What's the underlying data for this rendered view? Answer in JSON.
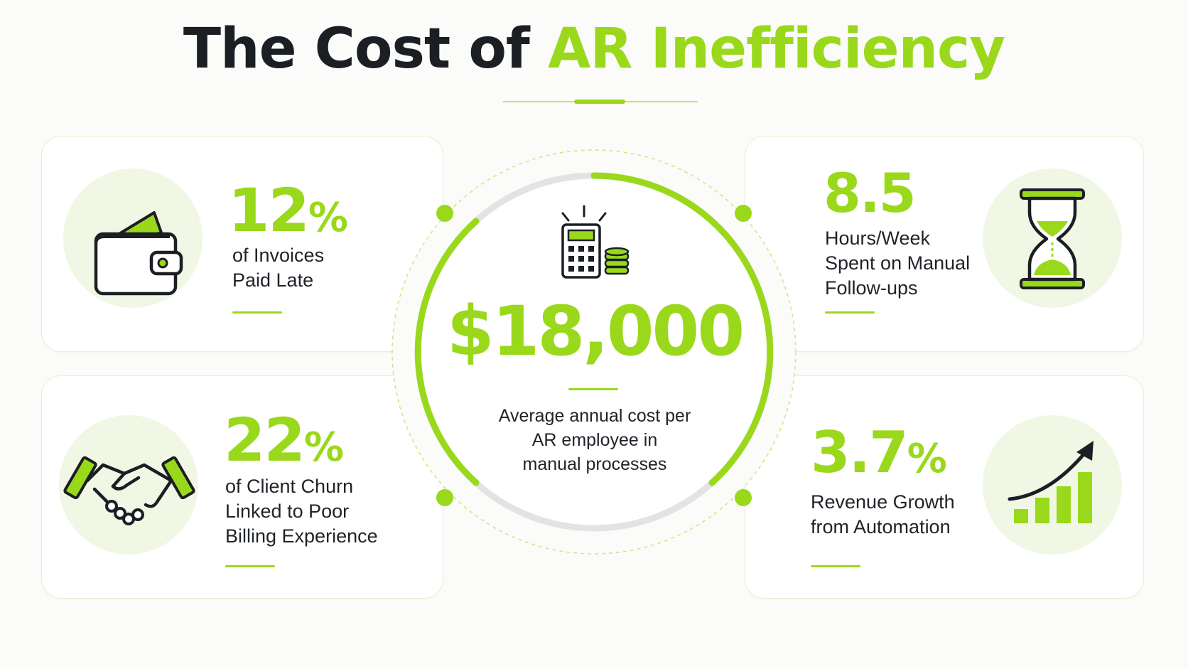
{
  "title": {
    "main": "The Cost of ",
    "accent": "AR Inefficiency"
  },
  "colors": {
    "accent": "#9ad81b",
    "dark": "#1b1f24",
    "icon_bg": "#f1f7e5"
  },
  "center": {
    "icon": "calculator-coins-icon",
    "amount": "$18,000",
    "description": "Average annual cost per\nAR employee in\nmanual processes"
  },
  "stats": [
    {
      "icon": "wallet-icon",
      "value": "12",
      "unit": "%",
      "description": "of Invoices\nPaid Late"
    },
    {
      "icon": "handshake-icon",
      "value": "22",
      "unit": "%",
      "description": "of Client Churn\nLinked to Poor\nBilling Experience"
    },
    {
      "icon": "hourglass-icon",
      "value": "8.5",
      "unit": "",
      "description": "Hours/Week\nSpent on Manual\nFollow-ups"
    },
    {
      "icon": "growth-chart-icon",
      "value": "3.7",
      "unit": "%",
      "description": "Revenue Growth\nfrom Automation"
    }
  ]
}
